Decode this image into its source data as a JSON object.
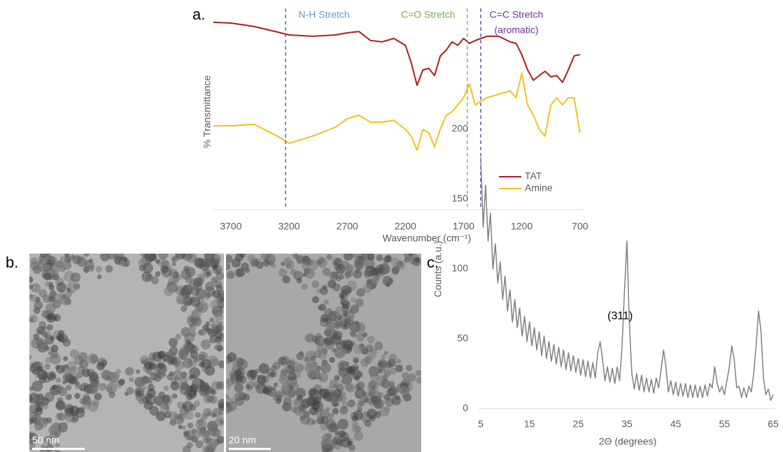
{
  "chart_data": [
    {
      "type": "line",
      "panel_label": "a.",
      "x_label": "Wavenumber (cm⁻¹)",
      "y_label": "% Transmittance",
      "xlim": [
        3850,
        675
      ],
      "xticks": [
        3700,
        3200,
        2700,
        2200,
        1700,
        1200,
        700
      ],
      "ylim": [
        0,
        100
      ],
      "legend": "lower right",
      "x": [
        3850,
        3700,
        3500,
        3300,
        3200,
        3000,
        2800,
        2700,
        2600,
        2500,
        2400,
        2300,
        2200,
        2150,
        2100,
        2050,
        2000,
        1950,
        1900,
        1850,
        1800,
        1750,
        1700,
        1650,
        1600,
        1500,
        1400,
        1300,
        1250,
        1200,
        1150,
        1100,
        1050,
        1000,
        950,
        900,
        850,
        800,
        750,
        700
      ],
      "series": [
        {
          "name": "TAT",
          "color": "#b01c1c",
          "values": [
            97.5,
            97.1,
            95.3,
            92.4,
            90.9,
            90.2,
            90.9,
            92.0,
            92.7,
            88.0,
            87.3,
            89.1,
            85.5,
            76.4,
            64.7,
            72.7,
            73.5,
            69.8,
            80.0,
            82.9,
            87.3,
            85.5,
            89.1,
            86.5,
            88.0,
            90.2,
            90.2,
            87.3,
            86.5,
            80.7,
            72.7,
            67.3,
            69.8,
            72.0,
            69.1,
            69.8,
            66.2,
            72.7,
            80.0,
            80.7
          ]
        },
        {
          "name": "Amine",
          "color": "#f0c020",
          "values": [
            43.6,
            43.6,
            44.4,
            38.2,
            34.5,
            38.2,
            42.9,
            47.3,
            49.1,
            45.5,
            45.5,
            46.5,
            41.8,
            38.2,
            30.9,
            41.8,
            40.0,
            32.7,
            41.8,
            49.1,
            50.9,
            54.5,
            58.2,
            65.5,
            54.5,
            58.2,
            60.0,
            61.8,
            58.2,
            70.9,
            54.5,
            49.1,
            41.8,
            38.2,
            54.5,
            58.2,
            54.5,
            58.2,
            58.2,
            40.0
          ]
        }
      ],
      "annotations": [
        {
          "lines": [
            "N-H Stretch"
          ],
          "x": 3230,
          "color": "#5b9bd5",
          "line_color": "#44546a"
        },
        {
          "lines": [
            "C=O Stretch"
          ],
          "x": 1668,
          "color": "#70ad47",
          "line_color": "#70ad47"
        },
        {
          "lines": [
            "C=C Stretch",
            "(aromatic)"
          ],
          "x": 1553,
          "color": "#7030a0",
          "line_color": "#3b3ba0"
        }
      ]
    },
    {
      "type": "line",
      "panel_label": "c.",
      "x_label": "2Θ (degrees)",
      "y_label": "Counts (a.u.)",
      "xlim": [
        5,
        65
      ],
      "xticks": [
        5,
        15,
        25,
        35,
        45,
        55,
        65
      ],
      "ylim": [
        0,
        200
      ],
      "yticks": [
        0,
        50,
        100,
        150,
        200
      ],
      "x": [
        5,
        5.5,
        6,
        6.5,
        7,
        7.5,
        8,
        8.5,
        9,
        9.5,
        10,
        10.5,
        11,
        11.5,
        12,
        12.5,
        13,
        13.5,
        14,
        14.5,
        15,
        15.5,
        16,
        16.5,
        17,
        17.5,
        18,
        18.5,
        19,
        19.5,
        20,
        20.5,
        21,
        21.5,
        22,
        22.5,
        23,
        23.5,
        24,
        24.5,
        25,
        25.5,
        26,
        26.5,
        27,
        27.5,
        28,
        28.5,
        29,
        29.5,
        30,
        30.5,
        31,
        31.5,
        32,
        32.5,
        33,
        33.5,
        34,
        34.5,
        35,
        35.5,
        36,
        36.5,
        37,
        37.5,
        38,
        38.5,
        39,
        39.5,
        40,
        40.5,
        41,
        41.5,
        42,
        42.5,
        43,
        43.5,
        44,
        44.5,
        45,
        45.5,
        46,
        46.5,
        47,
        47.5,
        48,
        48.5,
        49,
        49.5,
        50,
        50.5,
        51,
        51.5,
        52,
        52.5,
        53,
        53.5,
        54,
        54.5,
        55,
        55.5,
        56,
        56.5,
        57,
        57.5,
        58,
        58.5,
        59,
        59.5,
        60,
        60.5,
        61,
        61.5,
        62,
        62.5,
        63,
        63.5,
        64,
        64.5,
        65
      ],
      "series": [
        {
          "color": "#808080",
          "values": [
            180,
            130,
            160,
            120,
            140,
            100,
            118,
            90,
            105,
            78,
            95,
            70,
            85,
            62,
            78,
            58,
            72,
            52,
            66,
            48,
            62,
            45,
            58,
            42,
            55,
            38,
            52,
            36,
            48,
            34,
            46,
            32,
            44,
            30,
            42,
            28,
            40,
            27,
            38,
            26,
            36,
            24,
            35,
            23,
            34,
            22,
            33,
            22,
            40,
            48,
            35,
            20,
            30,
            19,
            29,
            18,
            30,
            20,
            45,
            85,
            120,
            60,
            25,
            14,
            25,
            13,
            24,
            12,
            22,
            12,
            21,
            11,
            22,
            15,
            28,
            42,
            30,
            12,
            20,
            10,
            19,
            9,
            18,
            9,
            18,
            8,
            17,
            8,
            17,
            8,
            16,
            8,
            17,
            9,
            18,
            15,
            30,
            18,
            12,
            16,
            10,
            20,
            30,
            45,
            35,
            15,
            16,
            8,
            15,
            8,
            16,
            12,
            25,
            45,
            70,
            55,
            22,
            10,
            14,
            6,
            10
          ]
        }
      ],
      "annotations": [
        {
          "text": "(311)",
          "x": 33.6,
          "y": 66
        }
      ]
    }
  ],
  "images": {
    "panel_label": "b.",
    "scale_bars": [
      "50 nm",
      "20 nm"
    ]
  }
}
